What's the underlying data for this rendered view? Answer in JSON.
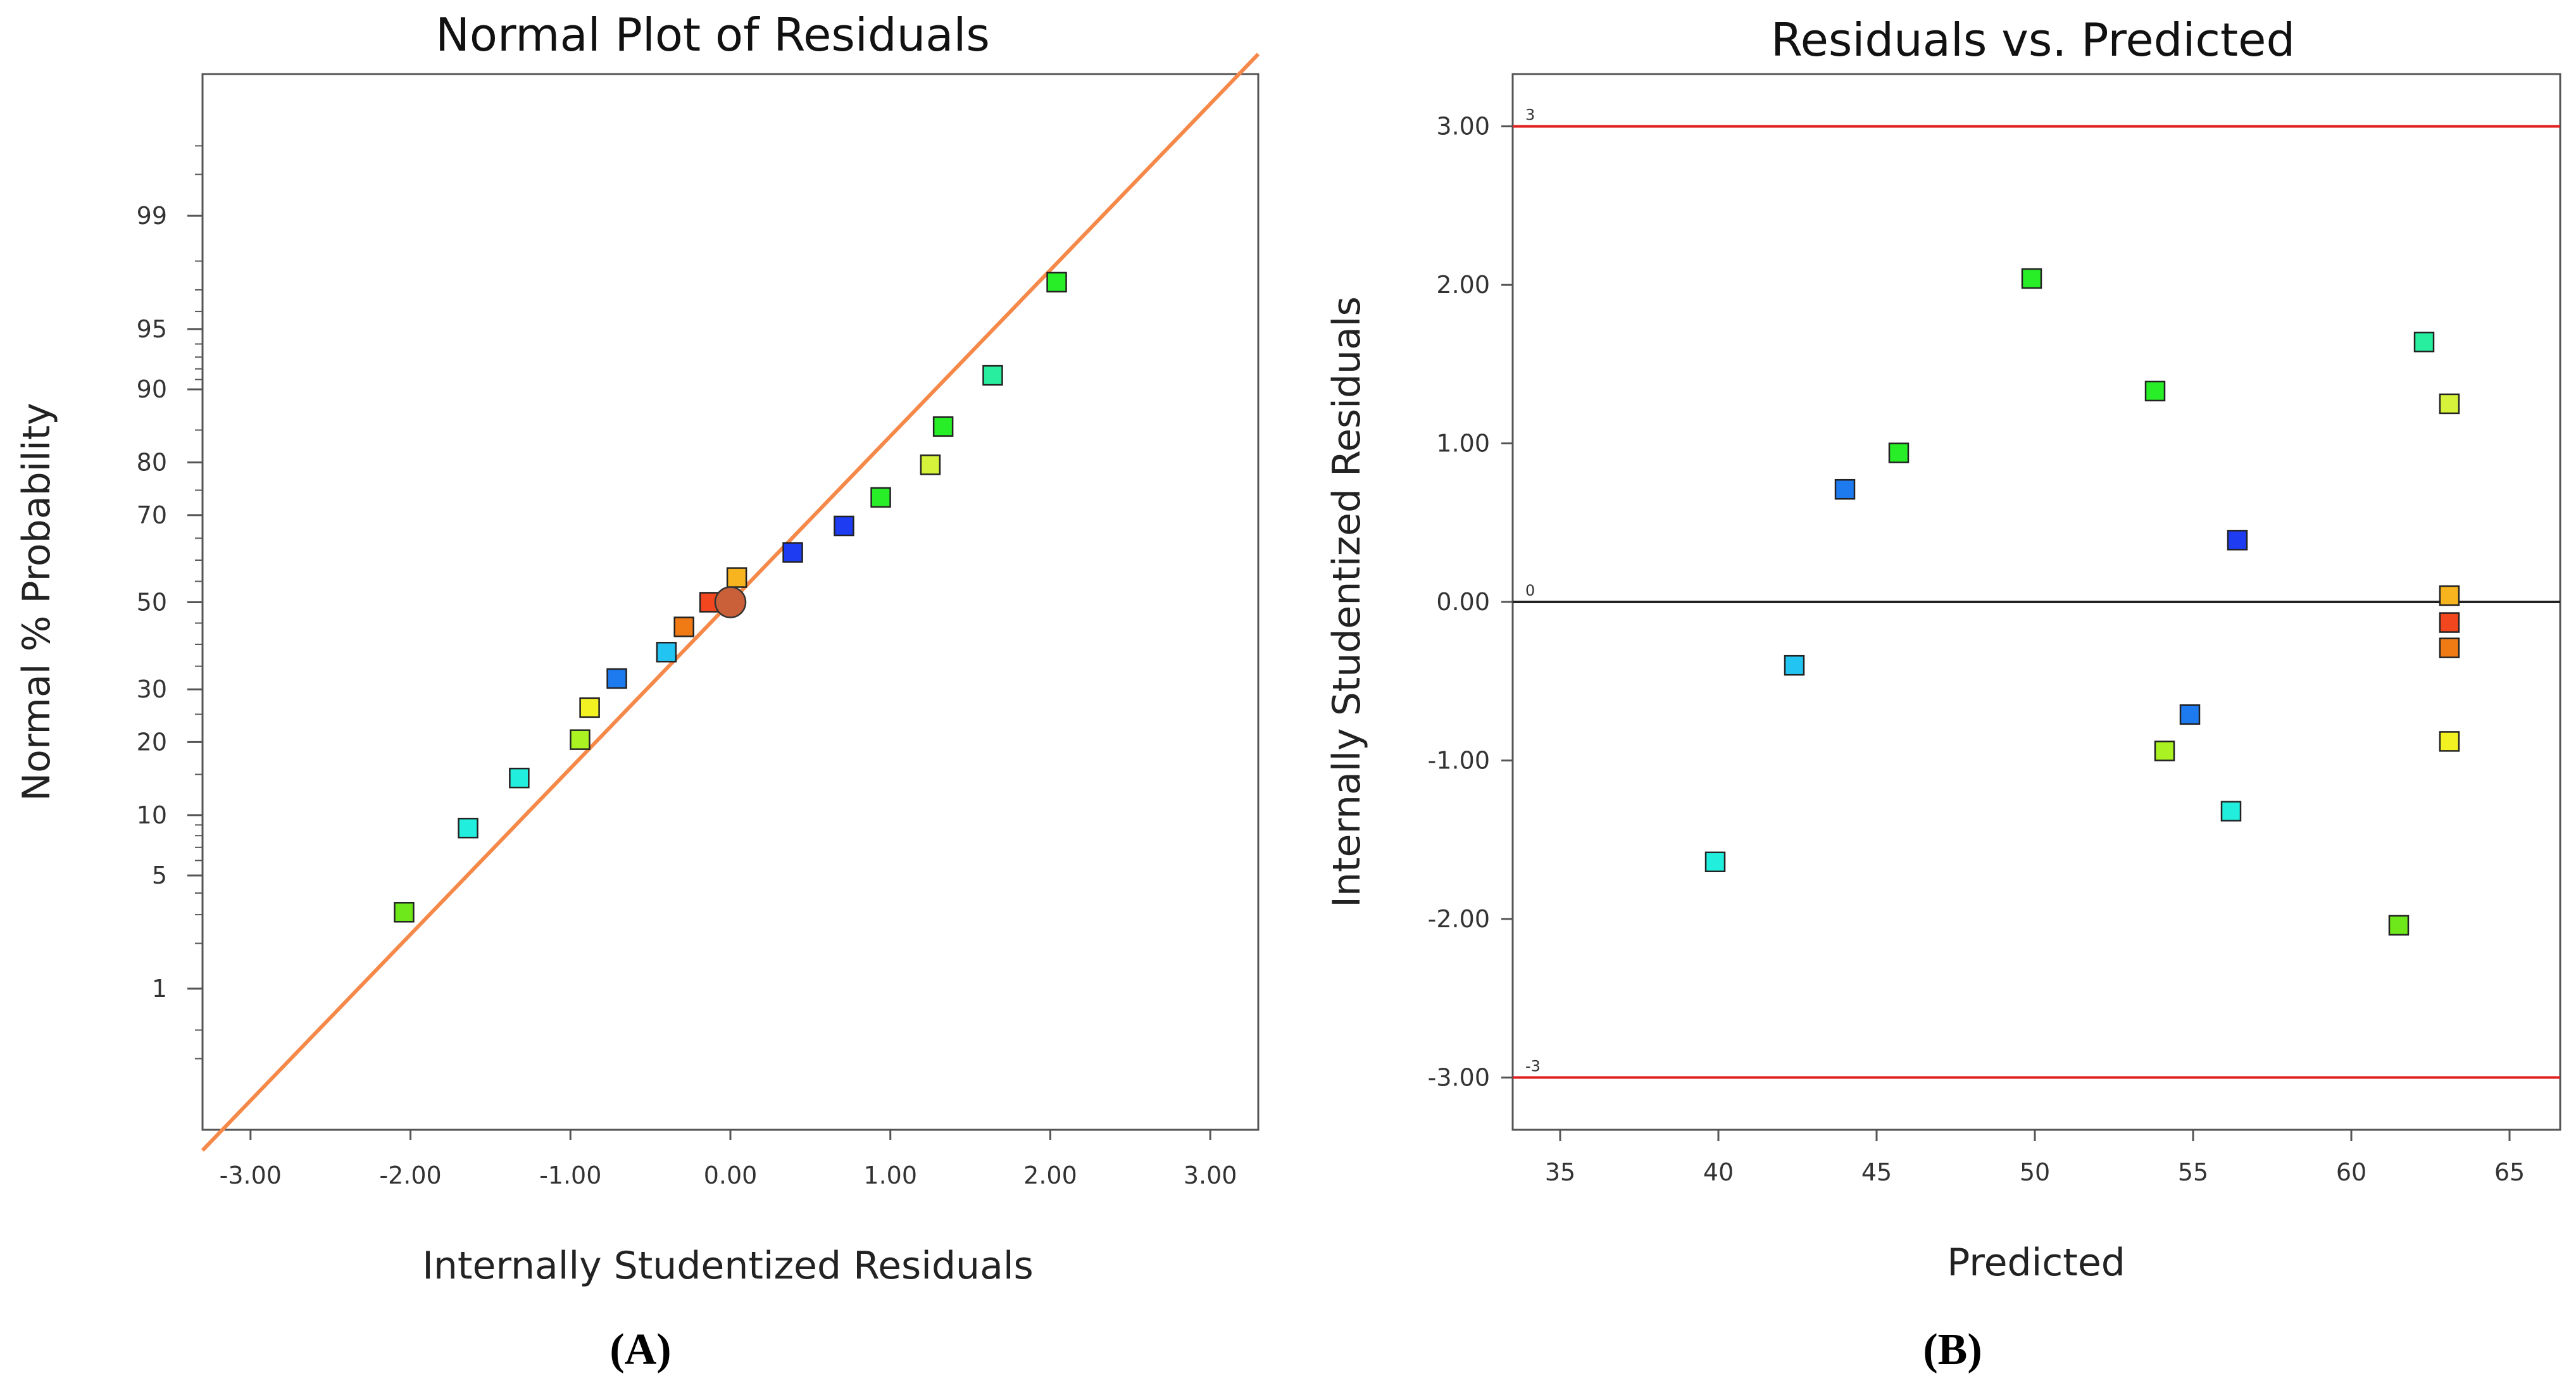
{
  "chart_data": [
    {
      "id": "A",
      "type": "scatter",
      "title": "Normal Plot of Residuals",
      "xlabel": "Internally Studentized Residuals",
      "ylabel": "Normal % Probability",
      "caption": "(A)",
      "xlim": [
        -3.3,
        3.3
      ],
      "x_ticks": [
        -3.0,
        -2.0,
        -1.0,
        0.0,
        1.0,
        2.0,
        3.0
      ],
      "x_tick_labels": [
        "-3.00",
        "-2.00",
        "-1.00",
        "0.00",
        "1.00",
        "2.00",
        "3.00"
      ],
      "y_scale": "normal-probability",
      "y_ticks": [
        1,
        5,
        10,
        20,
        30,
        50,
        70,
        80,
        90,
        95,
        99
      ],
      "y_tick_labels": [
        "1",
        "5",
        "10",
        "20",
        "30",
        "50",
        "70",
        "80",
        "90",
        "95",
        "99"
      ],
      "reference_line": {
        "color": "#f5894a"
      },
      "centroid": {
        "x": 0.0,
        "y": 50,
        "color": "#c9603a"
      },
      "points": [
        {
          "x": -2.04,
          "y": 3.1,
          "color": "#6ee81a"
        },
        {
          "x": -1.64,
          "y": 8.7,
          "color": "#22eedd"
        },
        {
          "x": -1.32,
          "y": 14.5,
          "color": "#22eedd"
        },
        {
          "x": -0.94,
          "y": 20.4,
          "color": "#aaf222"
        },
        {
          "x": -0.88,
          "y": 26.3,
          "color": "#f2f222"
        },
        {
          "x": -0.71,
          "y": 32.3,
          "color": "#1e7bef"
        },
        {
          "x": -0.4,
          "y": 38.2,
          "color": "#22c4f2"
        },
        {
          "x": -0.29,
          "y": 44.1,
          "color": "#f07b14"
        },
        {
          "x": -0.13,
          "y": 50.0,
          "color": "#f2461e"
        },
        {
          "x": 0.04,
          "y": 55.9,
          "color": "#f7b41e"
        },
        {
          "x": 0.39,
          "y": 61.8,
          "color": "#1e3cf2"
        },
        {
          "x": 0.71,
          "y": 67.7,
          "color": "#1e3cf2"
        },
        {
          "x": 0.94,
          "y": 73.6,
          "color": "#28ee28"
        },
        {
          "x": 1.25,
          "y": 79.6,
          "color": "#d6f23a"
        },
        {
          "x": 1.33,
          "y": 85.5,
          "color": "#28ee28"
        },
        {
          "x": 1.64,
          "y": 91.4,
          "color": "#28eea0"
        },
        {
          "x": 2.04,
          "y": 97.3,
          "color": "#28ee28"
        }
      ]
    },
    {
      "id": "B",
      "type": "scatter",
      "title": "Residuals vs. Predicted",
      "xlabel": "Predicted",
      "ylabel": "Internally Studentized Residuals",
      "caption": "(B)",
      "xlim": [
        33.5,
        66.6
      ],
      "ylim": [
        -3.33,
        3.33
      ],
      "x_ticks": [
        35,
        40,
        45,
        50,
        55,
        60,
        65
      ],
      "x_tick_labels": [
        "35",
        "40",
        "45",
        "50",
        "55",
        "60",
        "65"
      ],
      "y_ticks": [
        -3.0,
        -2.0,
        -1.0,
        0.0,
        1.0,
        2.0,
        3.0
      ],
      "y_tick_labels": [
        "-3.00",
        "-2.00",
        "-1.00",
        "0.00",
        "1.00",
        "2.00",
        "3.00"
      ],
      "reference_lines": [
        {
          "y": 3,
          "label": "3",
          "color": "#e02020"
        },
        {
          "y": 0,
          "label": "0",
          "color": "#222222"
        },
        {
          "y": -3,
          "label": "-3",
          "color": "#e02020"
        }
      ],
      "points": [
        {
          "x": 39.9,
          "y": -1.64,
          "color": "#22eedd"
        },
        {
          "x": 42.4,
          "y": -0.4,
          "color": "#22c4f2"
        },
        {
          "x": 44.0,
          "y": 0.71,
          "color": "#1e7bef"
        },
        {
          "x": 45.7,
          "y": 0.94,
          "color": "#28ee28"
        },
        {
          "x": 49.9,
          "y": 2.04,
          "color": "#28ee28"
        },
        {
          "x": 53.8,
          "y": 1.33,
          "color": "#28ee28"
        },
        {
          "x": 54.1,
          "y": -0.94,
          "color": "#aaf222"
        },
        {
          "x": 54.9,
          "y": -0.71,
          "color": "#1e7bef"
        },
        {
          "x": 56.2,
          "y": -1.32,
          "color": "#22eedd"
        },
        {
          "x": 56.4,
          "y": 0.39,
          "color": "#1e3cf2"
        },
        {
          "x": 61.5,
          "y": -2.04,
          "color": "#6ee81a"
        },
        {
          "x": 62.3,
          "y": 1.64,
          "color": "#28eea0"
        },
        {
          "x": 63.1,
          "y": 1.25,
          "color": "#d6f23a"
        },
        {
          "x": 63.1,
          "y": 0.04,
          "color": "#f7b41e"
        },
        {
          "x": 63.1,
          "y": -0.13,
          "color": "#f2461e"
        },
        {
          "x": 63.1,
          "y": -0.29,
          "color": "#f07b14"
        },
        {
          "x": 63.1,
          "y": -0.88,
          "color": "#f2f222"
        }
      ]
    }
  ]
}
